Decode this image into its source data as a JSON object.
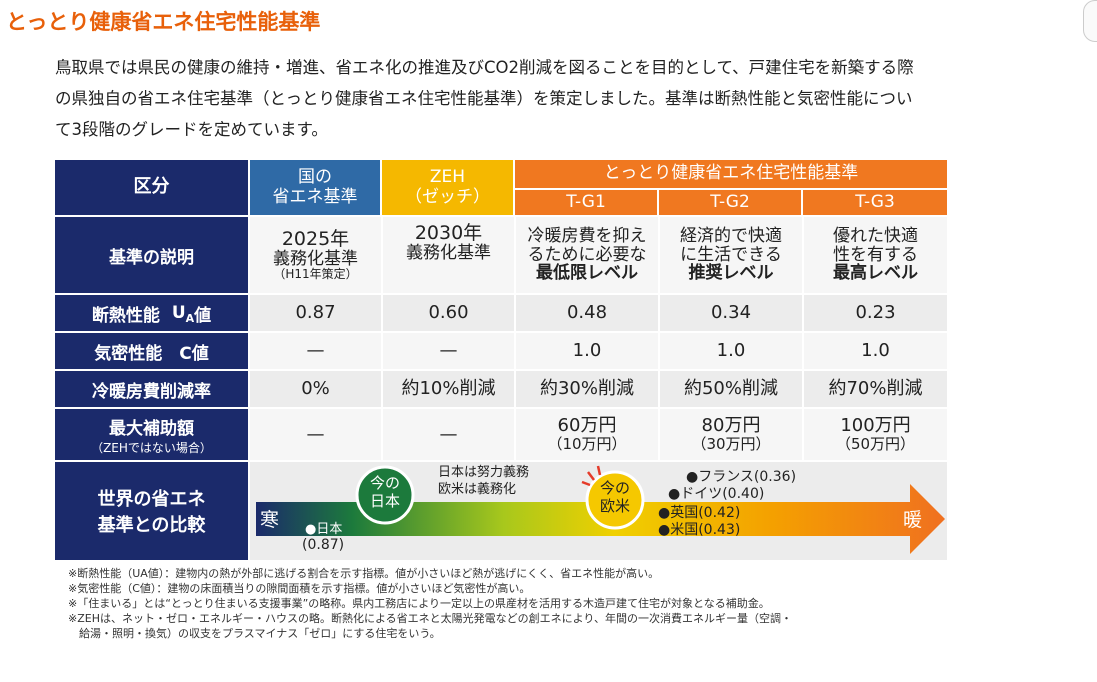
{
  "title": "とっとり健康省エネ住宅性能基準",
  "intro": [
    "鳥取県では県民の健康の維持・増進、省エネ化の推進及びCO2削減を図ることを目的として、戸建住宅を新築する際",
    "の県独自の省エネ住宅基準（とっとり健康省エネ住宅性能基準）を策定しました。基準は断熱性能と気密性能につい",
    "て3段階のグレードを定めています。"
  ],
  "table": {
    "corner": "区分",
    "national": {
      "line1": "国の",
      "line2": "省エネ基準"
    },
    "zeh": {
      "line1": "ZEH",
      "line2": "（ゼッチ）"
    },
    "tottori": "とっとり健康省エネ住宅性能基準",
    "grades": [
      "T-G1",
      "T-G2",
      "T-G3"
    ],
    "rows": {
      "description": {
        "label": "基準の説明",
        "national": {
          "l1": "2025年",
          "l2": "義務化基準",
          "l3": "（H11年策定）"
        },
        "zeh": {
          "l1": "2030年",
          "l2": "義務化基準"
        },
        "g1": {
          "l1": "冷暖房費を抑え",
          "l2": "るために必要な",
          "l3": "最低限レベル"
        },
        "g2": {
          "l1": "経済的で快適",
          "l2": "に生活できる",
          "l3": "推奨レベル"
        },
        "g3": {
          "l1": "優れた快適",
          "l2": "性を有する",
          "l3": "最高レベル"
        }
      },
      "insulation": {
        "label": "断熱性能",
        "unit_main": "U",
        "unit_sub": "A",
        "unit_tail": "値",
        "values": [
          "0.87",
          "0.60",
          "0.48",
          "0.34",
          "0.23"
        ]
      },
      "airtight": {
        "label": "気密性能　C値",
        "values": [
          "—",
          "—",
          "1.0",
          "1.0",
          "1.0"
        ]
      },
      "reduction": {
        "label": "冷暖房費削減率",
        "values": [
          "0%",
          "約10%削減",
          "約30%削減",
          "約50%削減",
          "約70%削減"
        ]
      },
      "subsidy": {
        "label": "最大補助額",
        "sublabel": "（ZEHではない場合）",
        "national": "—",
        "zeh": "—",
        "g1": {
          "main": "60万円",
          "sub": "（10万円）"
        },
        "g2": {
          "main": "80万円",
          "sub": "（30万円）"
        },
        "g3": {
          "main": "100万円",
          "sub": "（50万円）"
        }
      },
      "compare": {
        "label_l1": "世界の省エネ",
        "label_l2": "基準との比較",
        "cold": "寒",
        "warm": "暖",
        "japan_now_l1": "今の",
        "japan_now_l2": "日本",
        "effort_l1": "日本は努力義務",
        "effort_l2": "欧米は義務化",
        "west_now_l1": "今の",
        "west_now_l2": "欧米",
        "japan_point": "●日本",
        "japan_val": "(0.87)",
        "france": "●フランス(0.36)",
        "germany": "●ドイツ(0.40)",
        "uk": "●英国(0.42)",
        "us": "●米国(0.43)"
      }
    }
  },
  "notes": [
    "※断熱性能（UA値）：建物内の熱が外部に逃げる割合を示す指標。値が小さいほど熱が逃げにくく、省エネ性能が高い。",
    "※気密性能（C値）：建物の床面積当りの隙間面積を示す指標。値が小さいほど気密性が高い。",
    "※「住まいる」とは“とっとり住まいる支援事業”の略称。県内工務店により一定以上の県産材を活用する木造戸建て住宅が対象となる補助金。",
    "※ZEHは、ネット・ゼロ・エネルギー・ハウスの略。断熱化による省エネと太陽光発電などの創エネにより、年間の一次消費エネルギー量（空調・",
    "　給湯・照明・換気）の収支をプラスマイナス「ゼロ」にする住宅をいう。"
  ],
  "colors": {
    "title": "#e8600a",
    "navy": "#1b2a6b",
    "blue": "#2f6aa6",
    "yellow": "#f5b800",
    "orange": "#f07820"
  }
}
